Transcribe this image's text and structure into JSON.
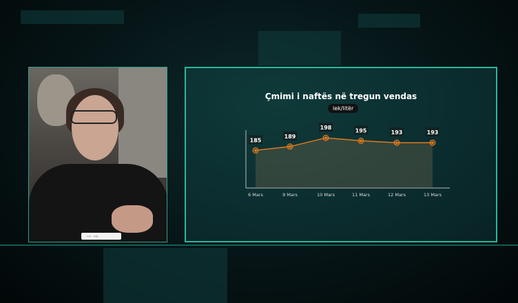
{
  "chart_data": {
    "type": "line",
    "title": "Çmimi i naftës në tregun vendas",
    "unit": "lek/litër",
    "categories": [
      "6 Mars",
      "9 Mars",
      "10 Mars",
      "11 Mars",
      "12 Mars",
      "13 Mars"
    ],
    "values": [
      185,
      189,
      198,
      195,
      193,
      193
    ],
    "ylim": [
      146,
      206
    ],
    "grid": false,
    "area_fill": true,
    "line_color": "#e07a1f"
  },
  "video": {
    "caption": "Live · video"
  }
}
